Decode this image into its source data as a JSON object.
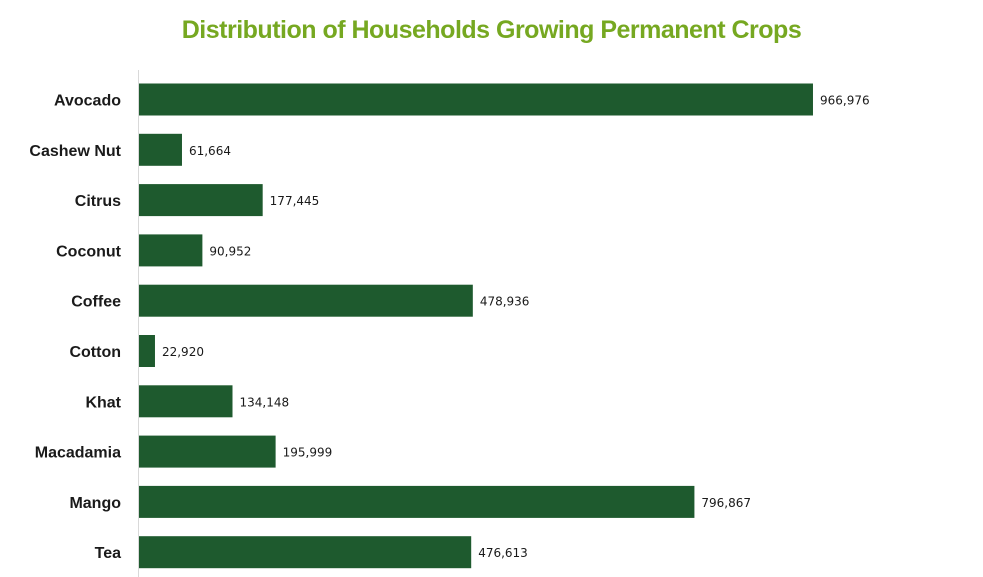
{
  "chart_data": {
    "type": "bar",
    "orientation": "horizontal",
    "title": "Distribution of Households Growing Permanent Crops",
    "categories": [
      "Avocado",
      "Cashew Nut",
      "Citrus",
      "Coconut",
      "Coffee",
      "Cotton",
      "Khat",
      "Macadamia",
      "Mango",
      "Tea"
    ],
    "values": [
      966976,
      61664,
      177445,
      90952,
      478936,
      22920,
      134148,
      195999,
      796867,
      476613
    ],
    "value_labels": [
      "966,976",
      "61,664",
      "177,445",
      "90,952",
      "478,936",
      "22,920",
      "134,148",
      "195,999",
      "796,867",
      "476,613"
    ],
    "xlim": [
      0,
      1000000
    ],
    "grid": false,
    "legend": "none"
  },
  "colors": {
    "title": "#76a821",
    "bar": "#1e5a2e",
    "axis": "#d9d9d9",
    "text": "#1a1a1a"
  }
}
